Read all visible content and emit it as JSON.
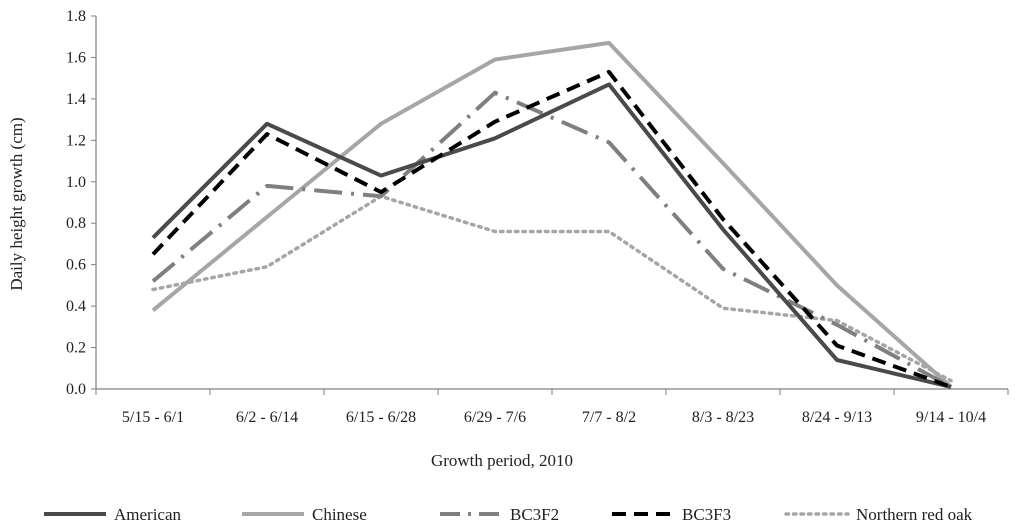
{
  "chart_data": {
    "type": "line",
    "title": "",
    "xlabel": "Growth period, 2010",
    "ylabel": "Daily height growth (cm)",
    "ylim": [
      0,
      1.8
    ],
    "ytick_step": 0.2,
    "ytick_labels": [
      "0.0",
      "0.2",
      "0.4",
      "0.6",
      "0.8",
      "1.0",
      "1.2",
      "1.4",
      "1.6",
      "1.8"
    ],
    "grid": false,
    "legend_position": "bottom",
    "categories": [
      "5/15 - 6/1",
      "6/2 - 6/14",
      "6/15 - 6/28",
      "6/29 - 7/6",
      "7/7 - 8/2",
      "8/3 - 8/23",
      "8/24 - 9/13",
      "9/14 - 10/4"
    ],
    "series": [
      {
        "name": "American",
        "color": "#4a4a4a",
        "style": "solid",
        "values": [
          0.73,
          1.28,
          1.03,
          1.21,
          1.47,
          0.77,
          0.14,
          0.01
        ]
      },
      {
        "name": "Chinese",
        "color": "#a6a6a6",
        "style": "solid",
        "values": [
          0.38,
          0.83,
          1.28,
          1.59,
          1.67,
          1.09,
          0.5,
          0.01
        ]
      },
      {
        "name": "BC3F2",
        "color": "#7f7f7f",
        "style": "long-dash-dot",
        "values": [
          0.52,
          0.98,
          0.93,
          1.43,
          1.19,
          0.58,
          0.31,
          0.01
        ]
      },
      {
        "name": "BC3F3",
        "color": "#000000",
        "style": "dash",
        "values": [
          0.65,
          1.23,
          0.95,
          1.29,
          1.53,
          0.82,
          0.21,
          0.01
        ]
      },
      {
        "name": "Northern red oak",
        "color": "#a6a6a6",
        "style": "dot",
        "values": [
          0.48,
          0.59,
          0.93,
          0.76,
          0.76,
          0.39,
          0.33,
          0.04
        ]
      }
    ]
  }
}
